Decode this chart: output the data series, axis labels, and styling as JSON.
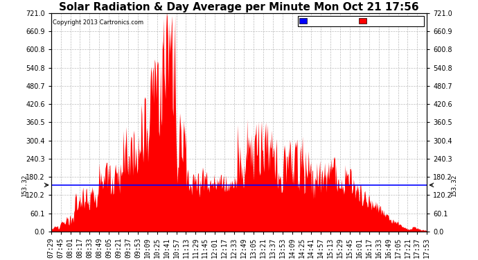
{
  "title": "Solar Radiation & Day Average per Minute Mon Oct 21 17:56",
  "copyright": "Copyright 2013 Cartronics.com",
  "median_value": 153.32,
  "median_label": "153.32",
  "y_max": 721.0,
  "y_min": 0.0,
  "y_ticks": [
    0.0,
    60.1,
    120.2,
    180.2,
    240.3,
    300.4,
    360.5,
    420.6,
    480.7,
    540.8,
    600.8,
    660.9,
    721.0
  ],
  "y_tick_labels": [
    "0.0",
    "60.1",
    "120.2",
    "180.2",
    "240.3",
    "300.4",
    "360.5",
    "420.6",
    "480.7",
    "540.8",
    "600.8",
    "660.9",
    "721.0"
  ],
  "background_color": "#ffffff",
  "grid_color": "#aaaaaa",
  "radiation_color": "#ff0000",
  "median_color": "#0000ff",
  "legend_median_bg": "#0000ff",
  "legend_radiation_bg": "#ff0000",
  "title_fontsize": 11,
  "tick_fontsize": 7,
  "x_tick_labels": [
    "07:29",
    "07:45",
    "08:01",
    "08:17",
    "08:33",
    "08:49",
    "09:05",
    "09:21",
    "09:37",
    "09:53",
    "10:09",
    "10:25",
    "10:41",
    "10:57",
    "11:13",
    "11:29",
    "11:45",
    "12:01",
    "12:17",
    "12:33",
    "12:49",
    "13:05",
    "13:21",
    "13:37",
    "13:53",
    "14:09",
    "14:25",
    "14:41",
    "14:57",
    "15:13",
    "15:29",
    "15:45",
    "16:01",
    "16:17",
    "16:33",
    "16:49",
    "17:05",
    "17:21",
    "17:37",
    "17:53"
  ]
}
